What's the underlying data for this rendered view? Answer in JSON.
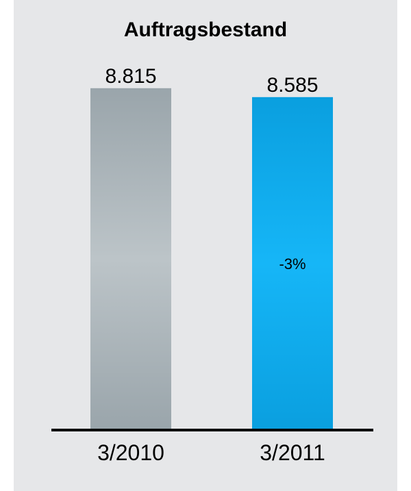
{
  "chart_data": {
    "type": "bar",
    "title": "Auftragsbestand",
    "categories": [
      "3/2010",
      "3/2011"
    ],
    "values": [
      8815,
      8585
    ],
    "value_labels": [
      "8.815",
      "8.585"
    ],
    "ylim": [
      0,
      9500
    ],
    "grid": false,
    "legend": "none",
    "bar_colors": [
      "#9aa5ab",
      "#0a9fdf"
    ],
    "bar_highlight_colors": [
      "#bcc4c8",
      "#16b6f7"
    ],
    "annotations": [
      {
        "text": "-3%",
        "category": "3/2011"
      }
    ]
  },
  "colors": {
    "background": "#e6e7e9",
    "axis": "#000000"
  }
}
